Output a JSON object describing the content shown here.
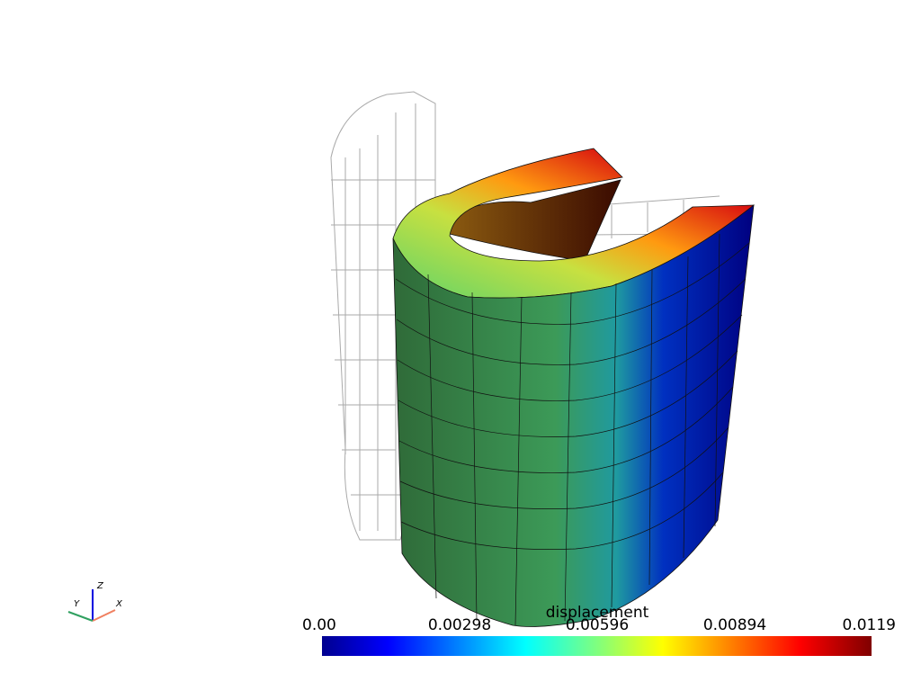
{
  "colorbar": {
    "title": "displacement",
    "range": [
      0,
      0.0119
    ],
    "ticks": [
      {
        "value": 0,
        "label": "0.00"
      },
      0.00298,
      0.00596,
      0.00894,
      0.0119
    ]
  },
  "axes_widget": {
    "x_label": "X",
    "y_label": "Y",
    "z_label": "Z"
  }
}
